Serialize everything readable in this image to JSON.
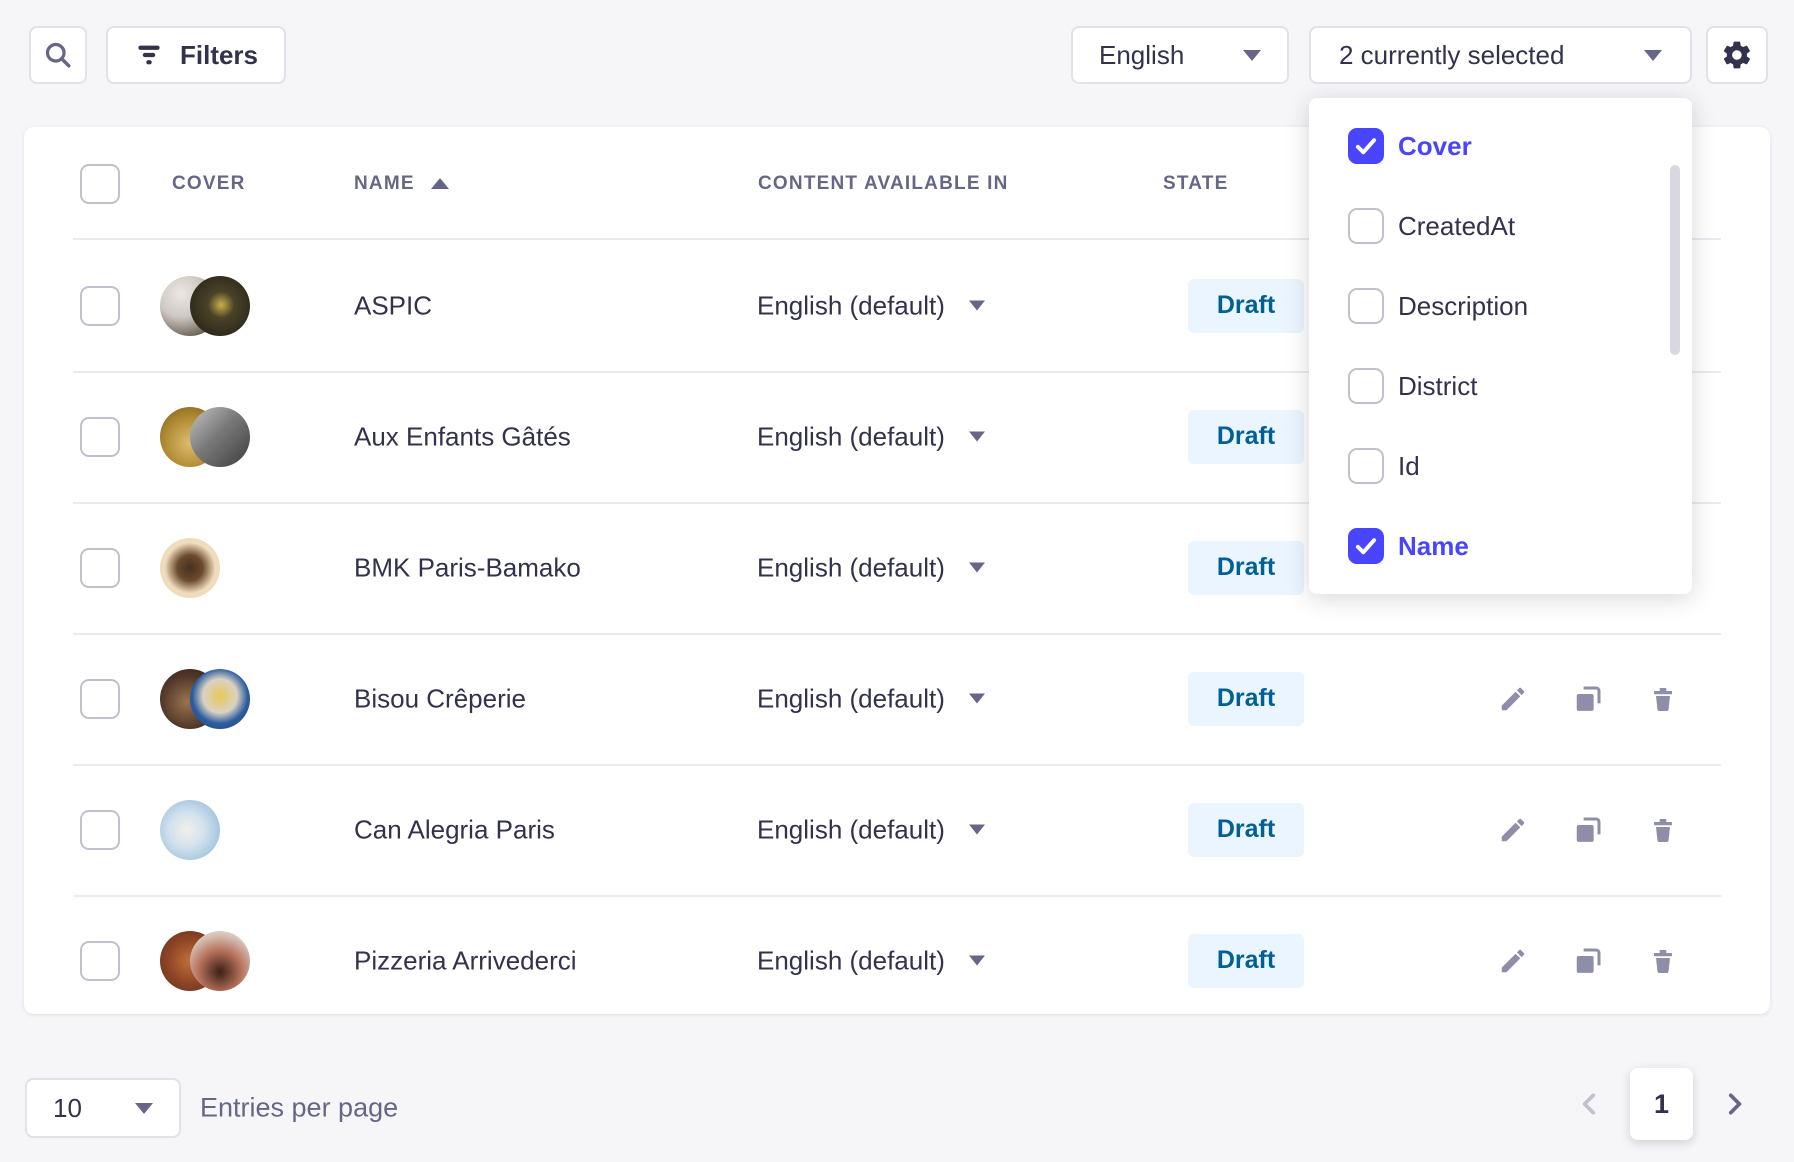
{
  "toolbar": {
    "filters_label": "Filters",
    "locale_value": "English",
    "columns_value": "2 currently selected"
  },
  "column_picker": {
    "items": [
      {
        "label": "Cover",
        "checked": true
      },
      {
        "label": "CreatedAt",
        "checked": false
      },
      {
        "label": "Description",
        "checked": false
      },
      {
        "label": "District",
        "checked": false
      },
      {
        "label": "Id",
        "checked": false
      },
      {
        "label": "Name",
        "checked": true
      }
    ]
  },
  "table": {
    "headers": {
      "cover": "COVER",
      "name": "NAME",
      "content_available_in": "CONTENT AVAILABLE IN",
      "state": "STATE"
    },
    "rows": [
      {
        "name": "ASPIC",
        "locale": "English (default)",
        "state": "Draft",
        "actions_visible": false,
        "covers": [
          "radial-gradient(circle at 35% 30%, #ece8e4 0%, #cfc8c2 40%, #6b5f54 78%, #3d332b 100%)",
          "radial-gradient(circle at 52% 48%, #c9b04a 0%, #4a4228 30%, #1d1b12 100%)"
        ]
      },
      {
        "name": "Aux Enfants Gâtés",
        "locale": "English (default)",
        "state": "Draft",
        "actions_visible": false,
        "covers": [
          "radial-gradient(circle at 50% 60%, #dcbd6e 0%, #b08a33 55%, #7a5c1e 100%)",
          "linear-gradient(135deg, #c4c4c4 0%, #7a7a7a 45%, #3c3c3c 100%)"
        ]
      },
      {
        "name": "BMK Paris-Bamako",
        "locale": "English (default)",
        "state": "Draft",
        "actions_visible": false,
        "covers": [
          "radial-gradient(circle at 50% 50%, #47301f 0%, #6b4a2e 30%, #f0ddbd 60%, #ecd9b8 100%)"
        ]
      },
      {
        "name": "Bisou Crêperie",
        "locale": "English (default)",
        "state": "Draft",
        "actions_visible": true,
        "covers": [
          "radial-gradient(circle at 45% 55%, #9a7450 0%, #53382a 55%, #241712 100%)",
          "radial-gradient(circle at 50% 45%, #e8c855 0%, #d9d2c4 38%, #2c5d9e 62%, #1d3f73 100%)"
        ]
      },
      {
        "name": "Can Alegria Paris",
        "locale": "English (default)",
        "state": "Draft",
        "actions_visible": true,
        "covers": [
          "radial-gradient(circle at 45% 50%, #f2efe8 0%, #d3e2ee 38%, #a8c8e0 72%, #8fb4d4 100%)"
        ]
      },
      {
        "name": "Pizzeria Arrivederci",
        "locale": "English (default)",
        "state": "Draft",
        "actions_visible": true,
        "covers": [
          "radial-gradient(circle at 50% 50%, #c2703a 0%, #8e4526 52%, #5e2d1a 100%)",
          "radial-gradient(circle at 50% 68%, #3a2018 0%, #b5715a 42%, #d9c5bc 75%, #efe9e6 100%)"
        ]
      }
    ]
  },
  "pagination": {
    "page_size": "10",
    "entries_label": "Entries per page",
    "current_page": "1"
  },
  "colors": {
    "primary": "#4945ff",
    "draft_badge_bg": "#eaf5ff",
    "draft_badge_text": "#006096",
    "background": "#f6f6f9",
    "header_text": "#666687",
    "icon_gray": "#8e8ea9"
  }
}
